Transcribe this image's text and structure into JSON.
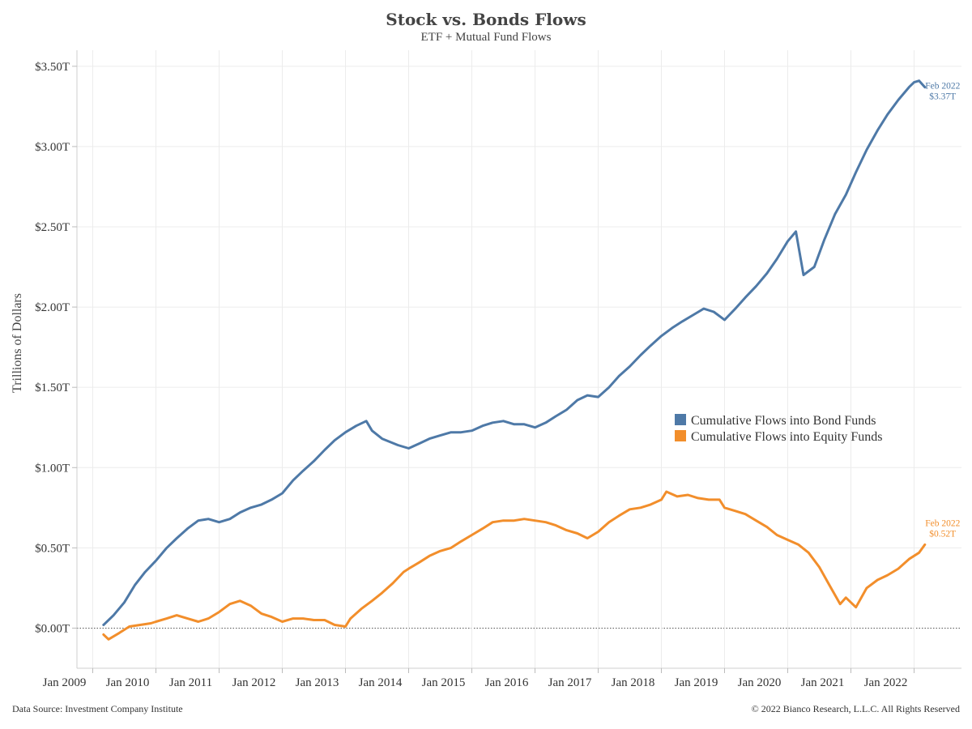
{
  "chart_data": {
    "type": "line",
    "title": "Stock vs. Bonds Flows",
    "subtitle": "ETF + Mutual Fund Flows",
    "ylabel": "Trillions of Dollars",
    "xlabel": "",
    "ylim": [
      -0.25,
      3.6
    ],
    "xlim": [
      2008.75,
      2022.75
    ],
    "grid": true,
    "legend_position": "right-middle",
    "y_ticks": [
      {
        "value": 0.0,
        "label": "$0.00T"
      },
      {
        "value": 0.5,
        "label": "$0.50T"
      },
      {
        "value": 1.0,
        "label": "$1.00T"
      },
      {
        "value": 1.5,
        "label": "$1.50T"
      },
      {
        "value": 2.0,
        "label": "$2.00T"
      },
      {
        "value": 2.5,
        "label": "$2.50T"
      },
      {
        "value": 3.0,
        "label": "$3.00T"
      },
      {
        "value": 3.5,
        "label": "$3.50T"
      }
    ],
    "x_ticks": [
      {
        "value": 2009,
        "label": "Jan 2009"
      },
      {
        "value": 2010,
        "label": "Jan 2010"
      },
      {
        "value": 2011,
        "label": "Jan 2011"
      },
      {
        "value": 2012,
        "label": "Jan 2012"
      },
      {
        "value": 2013,
        "label": "Jan 2013"
      },
      {
        "value": 2014,
        "label": "Jan 2014"
      },
      {
        "value": 2015,
        "label": "Jan 2015"
      },
      {
        "value": 2016,
        "label": "Jan 2016"
      },
      {
        "value": 2017,
        "label": "Jan 2017"
      },
      {
        "value": 2018,
        "label": "Jan 2018"
      },
      {
        "value": 2019,
        "label": "Jan 2019"
      },
      {
        "value": 2020,
        "label": "Jan 2020"
      },
      {
        "value": 2021,
        "label": "Jan 2021"
      },
      {
        "value": 2022,
        "label": "Jan 2022"
      }
    ],
    "reference_line": {
      "value": 0,
      "style": "dotted"
    },
    "series": [
      {
        "name": "Cumulative Flows into Bond Funds",
        "color": "#4e79a7",
        "end_label": {
          "date": "Feb 2022",
          "value": "$3.37T"
        },
        "points": [
          [
            2009.17,
            0.02
          ],
          [
            2009.33,
            0.08
          ],
          [
            2009.5,
            0.16
          ],
          [
            2009.67,
            0.27
          ],
          [
            2009.83,
            0.35
          ],
          [
            2010.0,
            0.42
          ],
          [
            2010.17,
            0.5
          ],
          [
            2010.33,
            0.56
          ],
          [
            2010.5,
            0.62
          ],
          [
            2010.67,
            0.67
          ],
          [
            2010.83,
            0.68
          ],
          [
            2011.0,
            0.66
          ],
          [
            2011.17,
            0.68
          ],
          [
            2011.33,
            0.72
          ],
          [
            2011.5,
            0.75
          ],
          [
            2011.67,
            0.77
          ],
          [
            2011.83,
            0.8
          ],
          [
            2012.0,
            0.84
          ],
          [
            2012.17,
            0.92
          ],
          [
            2012.33,
            0.98
          ],
          [
            2012.5,
            1.04
          ],
          [
            2012.67,
            1.11
          ],
          [
            2012.83,
            1.17
          ],
          [
            2013.0,
            1.22
          ],
          [
            2013.17,
            1.26
          ],
          [
            2013.33,
            1.29
          ],
          [
            2013.42,
            1.23
          ],
          [
            2013.58,
            1.18
          ],
          [
            2013.83,
            1.14
          ],
          [
            2014.0,
            1.12
          ],
          [
            2014.17,
            1.15
          ],
          [
            2014.33,
            1.18
          ],
          [
            2014.5,
            1.2
          ],
          [
            2014.67,
            1.22
          ],
          [
            2014.83,
            1.22
          ],
          [
            2015.0,
            1.23
          ],
          [
            2015.17,
            1.26
          ],
          [
            2015.33,
            1.28
          ],
          [
            2015.5,
            1.29
          ],
          [
            2015.67,
            1.27
          ],
          [
            2015.83,
            1.27
          ],
          [
            2016.0,
            1.25
          ],
          [
            2016.17,
            1.28
          ],
          [
            2016.33,
            1.32
          ],
          [
            2016.5,
            1.36
          ],
          [
            2016.67,
            1.42
          ],
          [
            2016.83,
            1.45
          ],
          [
            2017.0,
            1.44
          ],
          [
            2017.17,
            1.5
          ],
          [
            2017.33,
            1.57
          ],
          [
            2017.5,
            1.63
          ],
          [
            2017.67,
            1.7
          ],
          [
            2017.83,
            1.76
          ],
          [
            2018.0,
            1.82
          ],
          [
            2018.17,
            1.87
          ],
          [
            2018.33,
            1.91
          ],
          [
            2018.5,
            1.95
          ],
          [
            2018.67,
            1.99
          ],
          [
            2018.83,
            1.97
          ],
          [
            2019.0,
            1.92
          ],
          [
            2019.17,
            1.99
          ],
          [
            2019.33,
            2.06
          ],
          [
            2019.5,
            2.13
          ],
          [
            2019.67,
            2.21
          ],
          [
            2019.83,
            2.3
          ],
          [
            2020.0,
            2.41
          ],
          [
            2020.13,
            2.47
          ],
          [
            2020.25,
            2.2
          ],
          [
            2020.42,
            2.25
          ],
          [
            2020.58,
            2.42
          ],
          [
            2020.75,
            2.58
          ],
          [
            2020.92,
            2.7
          ],
          [
            2021.08,
            2.84
          ],
          [
            2021.25,
            2.98
          ],
          [
            2021.42,
            3.1
          ],
          [
            2021.58,
            3.2
          ],
          [
            2021.75,
            3.29
          ],
          [
            2021.92,
            3.37
          ],
          [
            2022.0,
            3.4
          ],
          [
            2022.08,
            3.41
          ],
          [
            2022.17,
            3.37
          ]
        ]
      },
      {
        "name": "Cumulative Flows into Equity Funds",
        "color": "#f28e2b",
        "end_label": {
          "date": "Feb 2022",
          "value": "$0.52T"
        },
        "points": [
          [
            2009.17,
            -0.04
          ],
          [
            2009.25,
            -0.07
          ],
          [
            2009.42,
            -0.03
          ],
          [
            2009.58,
            0.01
          ],
          [
            2009.75,
            0.02
          ],
          [
            2009.92,
            0.03
          ],
          [
            2010.0,
            0.04
          ],
          [
            2010.17,
            0.06
          ],
          [
            2010.33,
            0.08
          ],
          [
            2010.5,
            0.06
          ],
          [
            2010.67,
            0.04
          ],
          [
            2010.83,
            0.06
          ],
          [
            2011.0,
            0.1
          ],
          [
            2011.17,
            0.15
          ],
          [
            2011.33,
            0.17
          ],
          [
            2011.5,
            0.14
          ],
          [
            2011.67,
            0.09
          ],
          [
            2011.83,
            0.07
          ],
          [
            2012.0,
            0.04
          ],
          [
            2012.17,
            0.06
          ],
          [
            2012.33,
            0.06
          ],
          [
            2012.5,
            0.05
          ],
          [
            2012.67,
            0.05
          ],
          [
            2012.83,
            0.02
          ],
          [
            2013.0,
            0.01
          ],
          [
            2013.08,
            0.06
          ],
          [
            2013.25,
            0.12
          ],
          [
            2013.42,
            0.17
          ],
          [
            2013.58,
            0.22
          ],
          [
            2013.75,
            0.28
          ],
          [
            2013.92,
            0.35
          ],
          [
            2014.0,
            0.37
          ],
          [
            2014.17,
            0.41
          ],
          [
            2014.33,
            0.45
          ],
          [
            2014.5,
            0.48
          ],
          [
            2014.67,
            0.5
          ],
          [
            2014.83,
            0.54
          ],
          [
            2015.0,
            0.58
          ],
          [
            2015.17,
            0.62
          ],
          [
            2015.33,
            0.66
          ],
          [
            2015.5,
            0.67
          ],
          [
            2015.67,
            0.67
          ],
          [
            2015.83,
            0.68
          ],
          [
            2016.0,
            0.67
          ],
          [
            2016.17,
            0.66
          ],
          [
            2016.33,
            0.64
          ],
          [
            2016.5,
            0.61
          ],
          [
            2016.67,
            0.59
          ],
          [
            2016.83,
            0.56
          ],
          [
            2017.0,
            0.6
          ],
          [
            2017.17,
            0.66
          ],
          [
            2017.33,
            0.7
          ],
          [
            2017.5,
            0.74
          ],
          [
            2017.67,
            0.75
          ],
          [
            2017.83,
            0.77
          ],
          [
            2018.0,
            0.8
          ],
          [
            2018.08,
            0.85
          ],
          [
            2018.25,
            0.82
          ],
          [
            2018.42,
            0.83
          ],
          [
            2018.58,
            0.81
          ],
          [
            2018.75,
            0.8
          ],
          [
            2018.92,
            0.8
          ],
          [
            2019.0,
            0.75
          ],
          [
            2019.17,
            0.73
          ],
          [
            2019.33,
            0.71
          ],
          [
            2019.5,
            0.67
          ],
          [
            2019.67,
            0.63
          ],
          [
            2019.83,
            0.58
          ],
          [
            2020.0,
            0.55
          ],
          [
            2020.17,
            0.52
          ],
          [
            2020.33,
            0.47
          ],
          [
            2020.5,
            0.38
          ],
          [
            2020.67,
            0.26
          ],
          [
            2020.83,
            0.15
          ],
          [
            2020.92,
            0.19
          ],
          [
            2021.08,
            0.13
          ],
          [
            2021.25,
            0.25
          ],
          [
            2021.42,
            0.3
          ],
          [
            2021.58,
            0.33
          ],
          [
            2021.75,
            0.37
          ],
          [
            2021.92,
            0.43
          ],
          [
            2022.08,
            0.47
          ],
          [
            2022.17,
            0.52
          ]
        ]
      }
    ]
  },
  "footer": {
    "source": "Data Source: Investment Company Institute",
    "copyright": "© 2022 Bianco Research, L.L.C. All Rights Reserved"
  }
}
